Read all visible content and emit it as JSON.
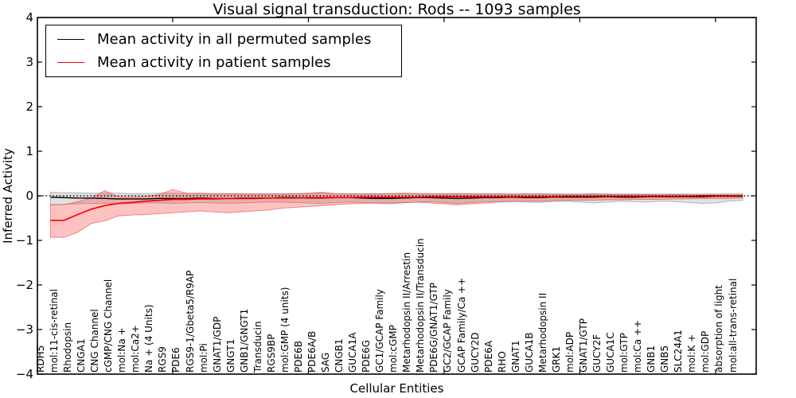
{
  "chart_data": {
    "type": "line",
    "title": "Visual signal transduction: Rods -- 1093 samples",
    "xlabel": "Cellular Entities",
    "ylabel": "Inferred Activity",
    "ylim": [
      -4,
      4
    ],
    "y_tick_labels": [
      "4",
      "3",
      "2",
      "1",
      "0",
      "−1",
      "−2",
      "−3",
      "−4"
    ],
    "x_major_tick_indices": [
      9,
      19,
      29,
      39,
      49
    ],
    "legend_position": "upper left",
    "grid": false,
    "zero_reference_line": {
      "value": 0,
      "style": "dotted",
      "color": "#000000"
    },
    "categories": [
      "RDH5",
      "mol:11-cis-retinal",
      "Rhodopsin",
      "CNGA1",
      "CNG Channel",
      "cGMP/CNG Channel",
      "mol:Na +",
      "mol:Ca2+",
      "Na + (4 Units)",
      "RGS9",
      "PDE6",
      "RGS9-1/Gbeta5/R9AP",
      "mol:Pi",
      "GNAT1/GDP",
      "GNGT1",
      "GNB1/GNGT1",
      "Transducin",
      "RGS9BP",
      "mol:GMP (4 units)",
      "PDE6B",
      "PDE6A/B",
      "SAG",
      "CNGB1",
      "GUCA1A",
      "PDE6G",
      "GC1/GCAP Family",
      "mol:cGMP",
      "Metarhodopsin II/Arrestin",
      "Metarhodopsin II/Transducin",
      "PDE6G/GNAT1/GTP",
      "GC2/GCAP Family",
      "GCAP Family/Ca ++",
      "GUCY2D",
      "PDE6A",
      "RHO",
      "GNAT1",
      "GUCA1B",
      "Metarhodopsin II",
      "GRK1",
      "mol:ADP",
      "GNAT1/GTP",
      "GUCY2F",
      "GUCA1C",
      "mol:GTP",
      "mol:Ca ++",
      "GNB1",
      "GNB5",
      "SLC24A1",
      "mol:K +",
      "mol:GDP",
      "absorption of light",
      "mol:all-trans-retinal"
    ],
    "series": [
      {
        "name": "Mean activity in all permuted samples",
        "color": "#000000",
        "style": "solid",
        "values": [
          -0.03,
          -0.04,
          -0.05,
          -0.05,
          -0.06,
          -0.07,
          -0.07,
          -0.07,
          -0.06,
          -0.06,
          -0.06,
          -0.05,
          -0.06,
          -0.06,
          -0.05,
          -0.05,
          -0.05,
          -0.04,
          -0.04,
          -0.05,
          -0.05,
          -0.04,
          -0.04,
          -0.05,
          -0.06,
          -0.06,
          -0.05,
          -0.04,
          -0.04,
          -0.05,
          -0.06,
          -0.05,
          -0.04,
          -0.04,
          -0.03,
          -0.04,
          -0.04,
          -0.03,
          -0.03,
          -0.03,
          -0.03,
          -0.02,
          -0.03,
          -0.03,
          -0.02,
          -0.02,
          -0.02,
          -0.02,
          -0.02,
          -0.01,
          -0.01,
          -0.01
        ],
        "band": {
          "name": "permuted-std-band",
          "fill": "rgba(90,90,90,0.18)",
          "edge": "rgba(110,110,110,0.45)",
          "upper": [
            0.08,
            0.07,
            0.07,
            0.06,
            0.06,
            0.06,
            0.05,
            0.05,
            0.06,
            0.06,
            0.05,
            0.06,
            0.05,
            0.05,
            0.05,
            0.05,
            0.05,
            0.05,
            0.05,
            0.05,
            0.06,
            0.05,
            0.05,
            0.05,
            0.05,
            0.05,
            0.05,
            0.05,
            0.05,
            0.05,
            0.05,
            0.05,
            0.05,
            0.05,
            0.05,
            0.05,
            0.05,
            0.05,
            0.04,
            0.04,
            0.05,
            0.04,
            0.04,
            0.04,
            0.04,
            0.04,
            0.04,
            0.04,
            0.04,
            0.04,
            0.05,
            0.05
          ],
          "lower": [
            -0.2,
            -0.19,
            -0.18,
            -0.17,
            -0.17,
            -0.18,
            -0.17,
            -0.16,
            -0.16,
            -0.17,
            -0.16,
            -0.15,
            -0.16,
            -0.17,
            -0.16,
            -0.15,
            -0.14,
            -0.14,
            -0.15,
            -0.16,
            -0.17,
            -0.15,
            -0.14,
            -0.15,
            -0.17,
            -0.18,
            -0.16,
            -0.14,
            -0.13,
            -0.15,
            -0.17,
            -0.15,
            -0.13,
            -0.13,
            -0.12,
            -0.14,
            -0.15,
            -0.13,
            -0.12,
            -0.14,
            -0.16,
            -0.14,
            -0.12,
            -0.13,
            -0.14,
            -0.12,
            -0.13,
            -0.15,
            -0.17,
            -0.16,
            -0.12,
            -0.1
          ]
        }
      },
      {
        "name": "Mean activity in patient samples",
        "color": "#ff0000",
        "style": "solid",
        "values": [
          -0.55,
          -0.55,
          -0.42,
          -0.3,
          -0.22,
          -0.17,
          -0.15,
          -0.12,
          -0.1,
          -0.08,
          -0.08,
          -0.07,
          -0.07,
          -0.06,
          -0.06,
          -0.06,
          -0.05,
          -0.05,
          -0.05,
          -0.04,
          -0.04,
          -0.04,
          -0.04,
          -0.03,
          -0.03,
          -0.03,
          -0.03,
          -0.03,
          -0.02,
          -0.02,
          -0.02,
          -0.02,
          -0.02,
          -0.02,
          -0.02,
          -0.02,
          -0.02,
          -0.02,
          -0.01,
          -0.01,
          -0.01,
          -0.01,
          -0.01,
          -0.01,
          -0.01,
          -0.01,
          -0.01,
          -0.01,
          0.0,
          0.0,
          0.0,
          0.0
        ],
        "band": {
          "name": "patient-std-band",
          "fill": "rgba(255,30,30,0.27)",
          "edge": "rgba(225,60,60,0.55)",
          "upper": [
            -0.2,
            -0.2,
            -0.13,
            -0.05,
            0.12,
            -0.03,
            -0.03,
            -0.02,
            0.03,
            0.14,
            0.06,
            0.05,
            0.04,
            0.05,
            0.04,
            0.04,
            0.04,
            0.04,
            0.05,
            0.06,
            0.08,
            0.05,
            0.04,
            0.04,
            0.04,
            0.05,
            0.06,
            0.05,
            0.04,
            0.04,
            0.05,
            0.04,
            0.04,
            0.04,
            0.03,
            0.04,
            0.04,
            0.03,
            0.03,
            0.03,
            0.04,
            0.03,
            0.03,
            0.03,
            0.03,
            0.02,
            0.03,
            0.02,
            0.02,
            0.02,
            0.02,
            0.02
          ],
          "lower": [
            -0.93,
            -0.93,
            -0.82,
            -0.62,
            -0.56,
            -0.45,
            -0.43,
            -0.42,
            -0.4,
            -0.38,
            -0.36,
            -0.34,
            -0.36,
            -0.38,
            -0.36,
            -0.34,
            -0.32,
            -0.28,
            -0.26,
            -0.24,
            -0.22,
            -0.2,
            -0.18,
            -0.17,
            -0.16,
            -0.16,
            -0.15,
            -0.14,
            -0.16,
            -0.18,
            -0.2,
            -0.18,
            -0.16,
            -0.14,
            -0.13,
            -0.12,
            -0.12,
            -0.11,
            -0.1,
            -0.1,
            -0.1,
            -0.09,
            -0.09,
            -0.08,
            -0.08,
            -0.08,
            -0.07,
            -0.07,
            -0.06,
            -0.06,
            -0.06,
            -0.05
          ]
        }
      }
    ]
  }
}
